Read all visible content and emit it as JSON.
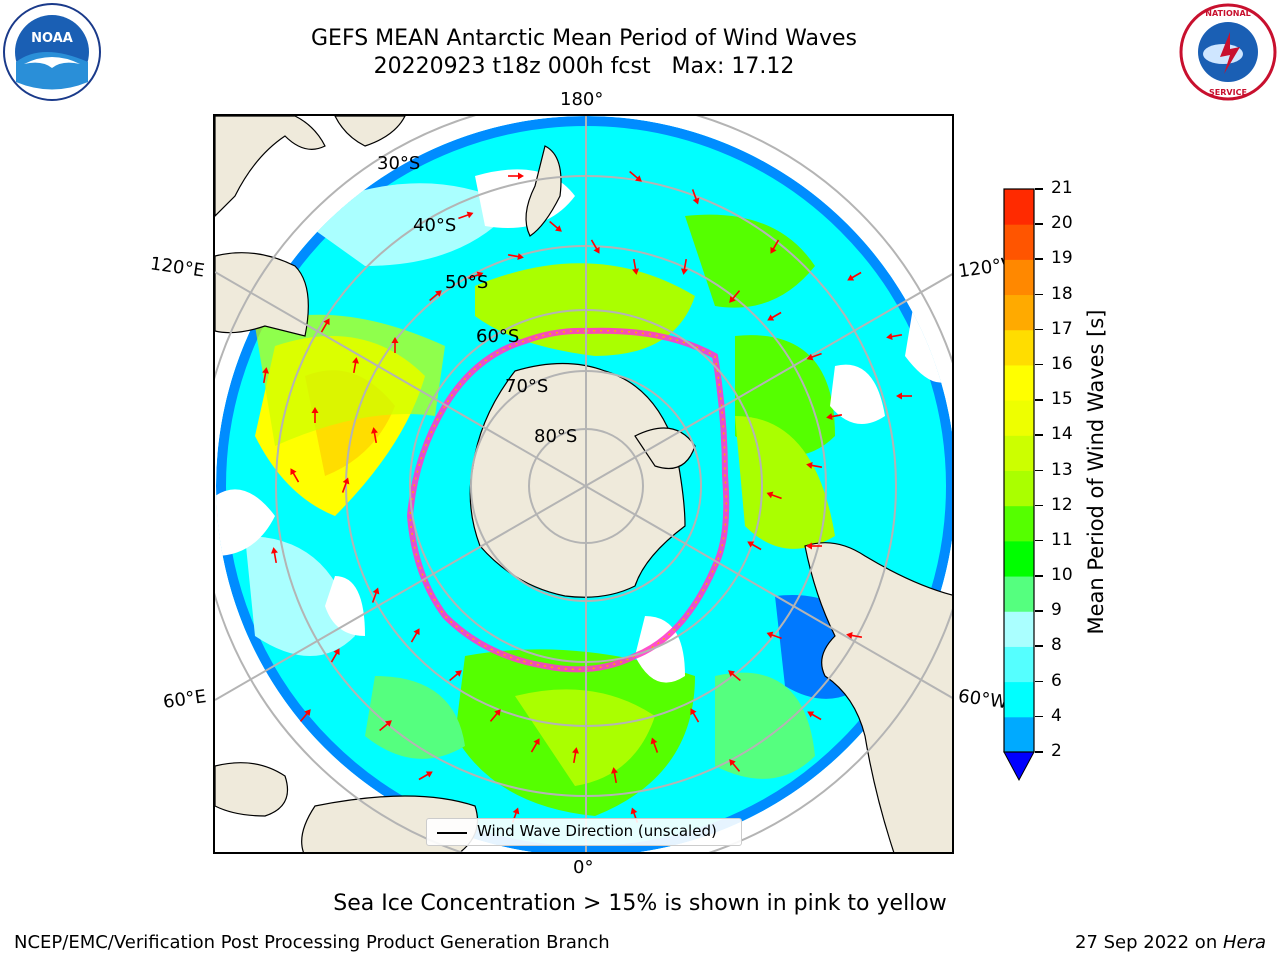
{
  "title": {
    "line1": "GEFS MEAN Antarctic Mean Period of Wind Waves",
    "line2": "20220923 t18z 000h fcst   Max: 17.12"
  },
  "map": {
    "projection": "south-polar-stereographic",
    "longitude_labels": {
      "top": "180°",
      "bottom": "0°",
      "upper_left": "120°E",
      "upper_right": "120°W",
      "lower_left": "60°E",
      "lower_right": "60°W"
    },
    "latitude_labels": [
      "30°S",
      "40°S",
      "50°S",
      "60°S",
      "70°S",
      "80°S"
    ],
    "legend": "Wind Wave Direction (unscaled)",
    "colors": {
      "land": "#efeadb",
      "ice_edge": "#ff3cc8",
      "graticule": "#b4b4b4",
      "arrow": "#ff0000"
    }
  },
  "colorbar": {
    "label": "Mean Period of Wind Waves [s]",
    "ticks": [
      "2",
      "4",
      "6",
      "8",
      "9",
      "10",
      "11",
      "12",
      "13",
      "14",
      "15",
      "16",
      "17",
      "18",
      "19",
      "20",
      "21"
    ],
    "colors": [
      "#0040ff",
      "#00aaff",
      "#00ffff",
      "#55ffff",
      "#aaffff",
      "#55ff7f",
      "#00ff00",
      "#55ff00",
      "#aaff00",
      "#ccff00",
      "#eeff00",
      "#ffff00",
      "#ffdd00",
      "#ffaa00",
      "#ff8800",
      "#ff5500",
      "#ff2a00",
      "#ff0000"
    ],
    "extend": "min"
  },
  "subcaption": "Sea Ice Concentration > 15% is shown in pink to yellow",
  "footer": {
    "left": "NCEP/EMC/Verification Post Processing Product Generation Branch",
    "right_date": "27 Sep 2022 on ",
    "right_machine": "Hera"
  },
  "logos": {
    "noaa": "NOAA",
    "nws": "NATIONAL WEATHER SERVICE"
  }
}
